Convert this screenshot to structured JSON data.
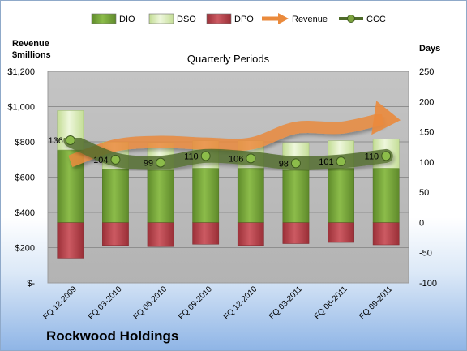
{
  "company": "Rockwood Holdings",
  "chart_data": {
    "type": "bar",
    "title": "Quarterly Periods",
    "left_axis_label": [
      "Revenue",
      "$millions"
    ],
    "right_axis_label": "Days",
    "categories": [
      "FQ 12-2009",
      "FQ 03-2010",
      "FQ 06-2010",
      "FQ 09-2010",
      "FQ 12-2010",
      "FQ 03-2011",
      "FQ 06-2011",
      "FQ 09-2011"
    ],
    "left_ticks": [
      "$1,200",
      "$1,000",
      "$800",
      "$600",
      "$400",
      "$200",
      "$-"
    ],
    "right_ticks": [
      "250",
      "200",
      "150",
      "100",
      "50",
      "0",
      "-50",
      "-100"
    ],
    "left_ylim": [
      0,
      1200
    ],
    "right_ylim": [
      -100,
      250
    ],
    "legend_position": "top",
    "colors": {
      "DIO": "#76a23a",
      "DSO": "#d8ebb5",
      "DPO": "#b9424a",
      "Revenue": "#ea8a3c",
      "CCC": "#4f6b2a",
      "plot_bg": "#bdbdbd"
    },
    "series": [
      {
        "name": "DIO",
        "axis": "right",
        "values": [
          120,
          88,
          87,
          90,
          90,
          87,
          90,
          90
        ]
      },
      {
        "name": "DSO",
        "axis": "right",
        "values": [
          65,
          45,
          45,
          45,
          45,
          45,
          45,
          48
        ]
      },
      {
        "name": "DPO",
        "axis": "right",
        "values": [
          -59,
          -38,
          -40,
          -36,
          -38,
          -35,
          -33,
          -37
        ]
      },
      {
        "name": "Revenue",
        "axis": "left",
        "values": [
          690,
          780,
          800,
          790,
          790,
          880,
          880,
          840
        ]
      },
      {
        "name": "CCC",
        "axis": "right",
        "values": [
          136,
          104,
          99,
          110,
          106,
          98,
          101,
          110
        ]
      }
    ],
    "ccc_labels": [
      "136",
      "104",
      "99",
      "110",
      "106",
      "98",
      "101",
      "110"
    ]
  }
}
